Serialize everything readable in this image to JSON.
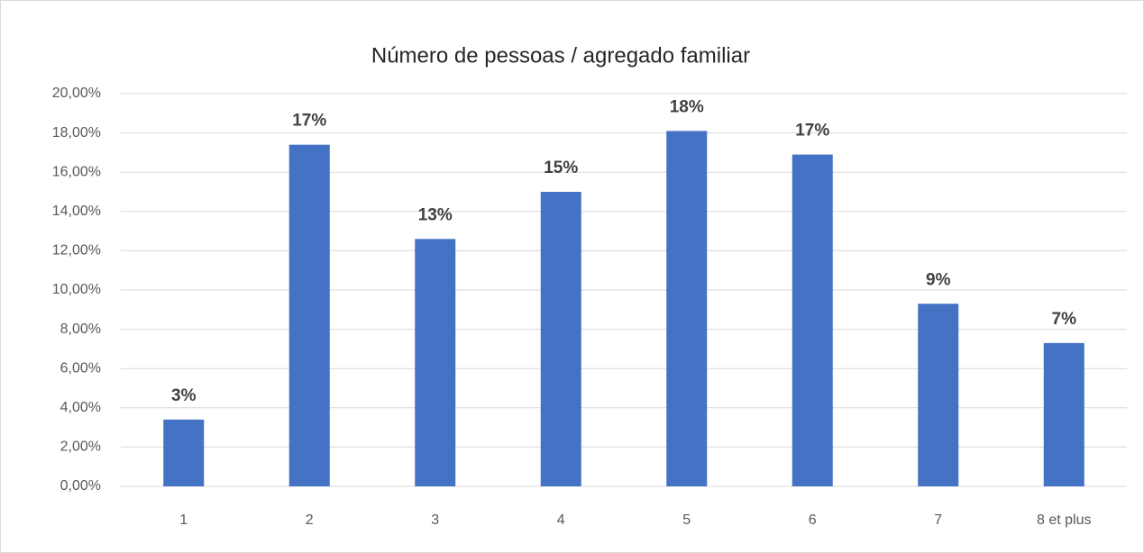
{
  "chart_data": {
    "type": "bar",
    "title": "Número de pessoas / agregado familiar",
    "categories": [
      "1",
      "2",
      "3",
      "4",
      "5",
      "6",
      "7",
      "8 et plus"
    ],
    "values": [
      3.4,
      17.4,
      12.6,
      15.0,
      18.1,
      16.9,
      9.3,
      7.3
    ],
    "value_labels": [
      "3%",
      "17%",
      "13%",
      "15%",
      "18%",
      "17%",
      "9%",
      "7%"
    ],
    "color": "#4472c4",
    "ylim": [
      0,
      20
    ],
    "yticks": [
      {
        "value": 0,
        "label": "0,00%"
      },
      {
        "value": 2,
        "label": "2,00%"
      },
      {
        "value": 4,
        "label": "4,00%"
      },
      {
        "value": 6,
        "label": "6,00%"
      },
      {
        "value": 8,
        "label": "8,00%"
      },
      {
        "value": 10,
        "label": "10,00%"
      },
      {
        "value": 12,
        "label": "12,00%"
      },
      {
        "value": 14,
        "label": "14,00%"
      },
      {
        "value": 16,
        "label": "16,00%"
      },
      {
        "value": 18,
        "label": "18,00%"
      },
      {
        "value": 20,
        "label": "20,00%"
      }
    ],
    "grid": true
  }
}
